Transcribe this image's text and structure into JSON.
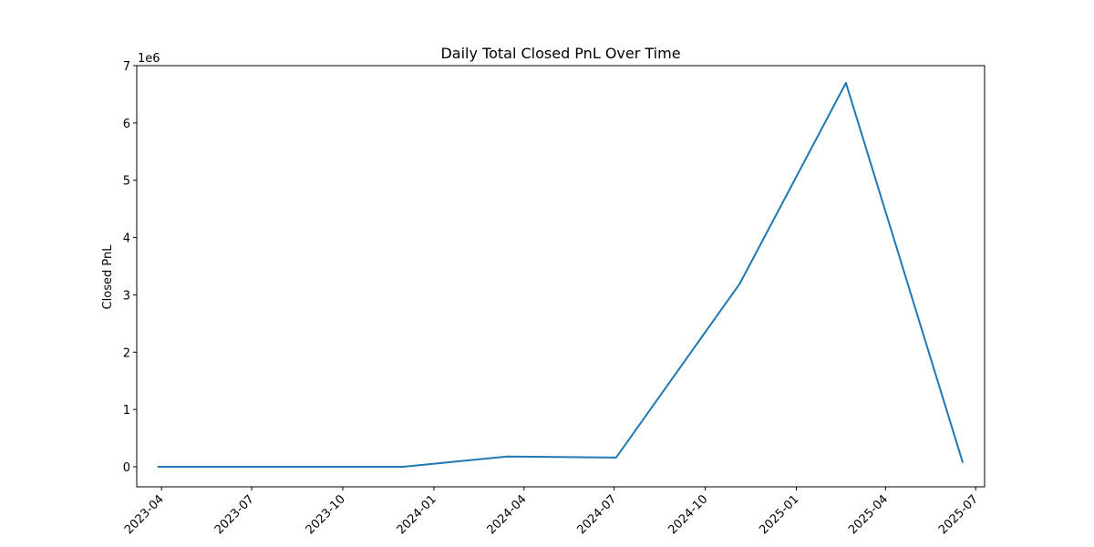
{
  "chart_data": {
    "type": "line",
    "title": "Daily Total Closed PnL Over Time",
    "xlabel": "",
    "ylabel": "Closed PnL",
    "y_offset_label": "1e6",
    "y_scale_factor": 1000000,
    "xlim": [
      "2023-03-07",
      "2025-07-10"
    ],
    "ylim": [
      -350000,
      7000000
    ],
    "x_ticks": [
      "2023-04-01",
      "2023-07-01",
      "2023-10-01",
      "2024-01-01",
      "2024-04-01",
      "2024-07-01",
      "2024-10-01",
      "2025-01-01",
      "2025-04-01",
      "2025-07-01"
    ],
    "x_tick_labels": [
      "2023-04",
      "2023-07",
      "2023-10",
      "2024-01",
      "2024-04",
      "2024-07",
      "2024-10",
      "2025-01",
      "2025-04",
      "2025-07"
    ],
    "y_ticks": [
      0,
      1000000,
      2000000,
      3000000,
      4000000,
      5000000,
      6000000,
      7000000
    ],
    "y_tick_labels": [
      "0",
      "1",
      "2",
      "3",
      "4",
      "5",
      "6",
      "7"
    ],
    "grid": false,
    "series": [
      {
        "color": "#1f77b4",
        "x": [
          "2023-03-28",
          "2023-06-28",
          "2023-12-01",
          "2024-03-15",
          "2024-07-03",
          "2024-11-05",
          "2025-02-20",
          "2025-06-18"
        ],
        "y": [
          0,
          0,
          0,
          180000,
          160000,
          3200000,
          6700000,
          70000
        ]
      }
    ]
  }
}
